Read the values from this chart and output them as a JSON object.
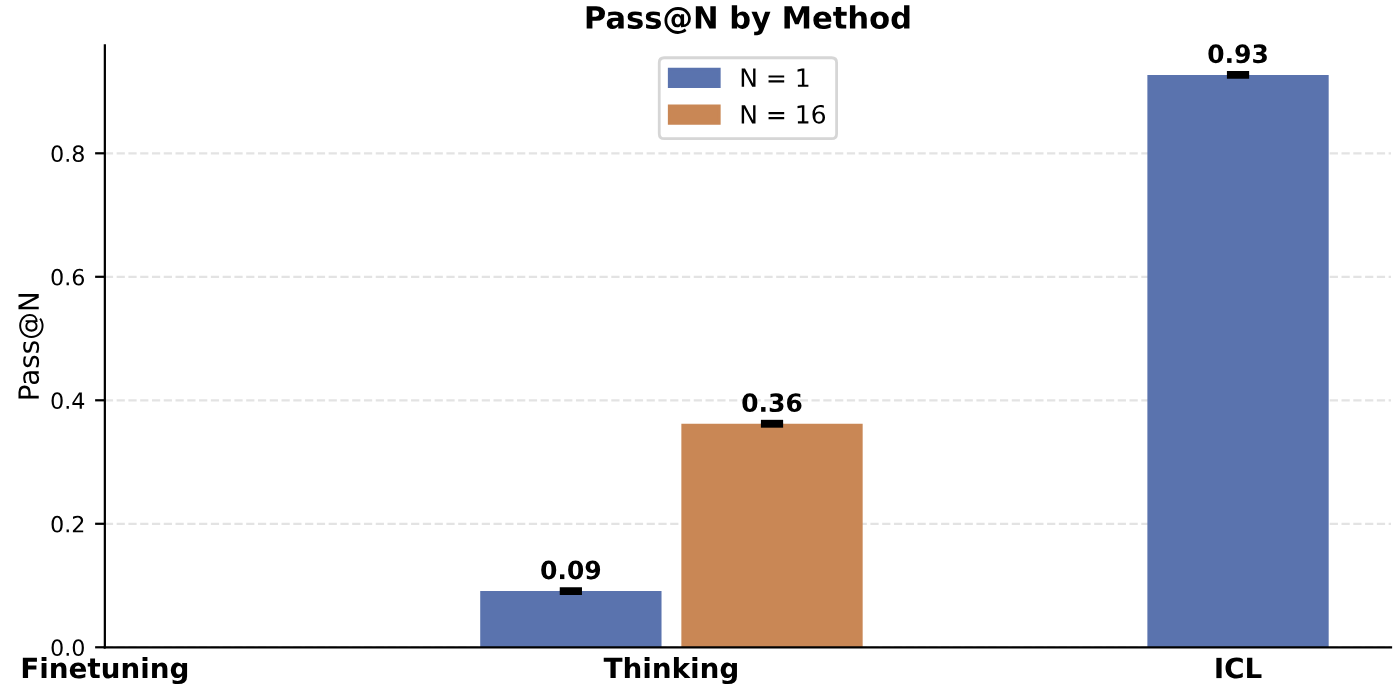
{
  "chart_data": {
    "type": "bar",
    "title": "Pass@N by Method",
    "ylabel": "Pass@N",
    "categories": [
      "Finetuning",
      "Thinking",
      "ICL"
    ],
    "series": [
      {
        "name": "N = 1",
        "color": "#5a73ae",
        "values": [
          null,
          0.091,
          0.927
        ],
        "errors": [
          null,
          0.003,
          0.003
        ],
        "value_labels": [
          null,
          "0.09",
          "0.93"
        ]
      },
      {
        "name": "N = 16",
        "color": "#c98755",
        "values": [
          null,
          0.362,
          null
        ],
        "errors": [
          null,
          0.003,
          null
        ],
        "value_labels": [
          null,
          "0.36",
          null
        ]
      }
    ],
    "ylim": [
      0,
      0.975
    ],
    "yticks": [
      {
        "value": 0,
        "label": "0.0"
      },
      {
        "value": 0.2,
        "label": "0.2"
      },
      {
        "value": 0.4,
        "label": "0.4"
      },
      {
        "value": 0.6,
        "label": "0.6"
      },
      {
        "value": 0.8,
        "label": "0.8"
      }
    ],
    "grid": "y",
    "legend": "top"
  }
}
